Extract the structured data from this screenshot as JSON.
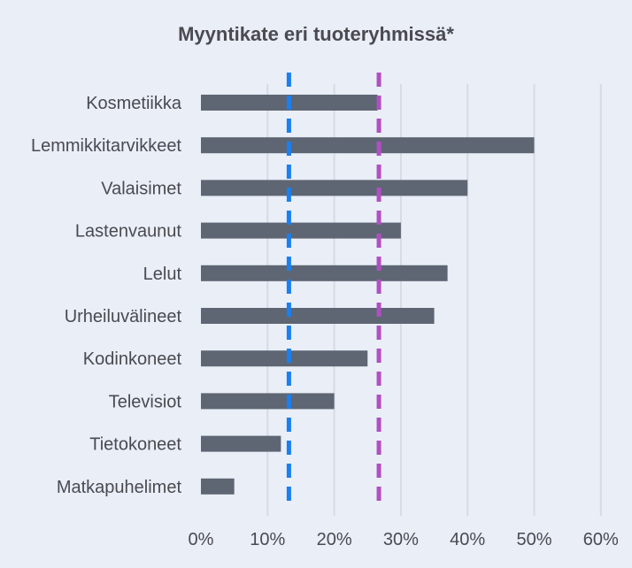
{
  "chart_data": {
    "type": "bar",
    "orientation": "horizontal",
    "title": "Myyntikate eri tuoteryhmissä*",
    "xlabel": "",
    "ylabel": "",
    "categories": [
      "Kosmetiikka",
      "Lemmikkitarvikkeet",
      "Valaisimet",
      "Lastenvaunut",
      "Lelut",
      "Urheiluvälineet",
      "Kodinkoneet",
      "Televisiot",
      "Tietokoneet",
      "Matkapuhelimet"
    ],
    "values": [
      26.5,
      50,
      40,
      30,
      37,
      35,
      25,
      20,
      12,
      5
    ],
    "xlim": [
      0,
      60
    ],
    "x_ticks": [
      "0%",
      "10%",
      "20%",
      "30%",
      "40%",
      "50%",
      "60%"
    ],
    "grid": true,
    "reference_lines": [
      {
        "value": 13.2,
        "color": "#1a7ff0",
        "style": "dashed"
      },
      {
        "value": 26.7,
        "color": "#b04fc4",
        "style": "dashed"
      }
    ],
    "bar_color": "#5e6673",
    "grid_color": "#d6dbe4"
  }
}
